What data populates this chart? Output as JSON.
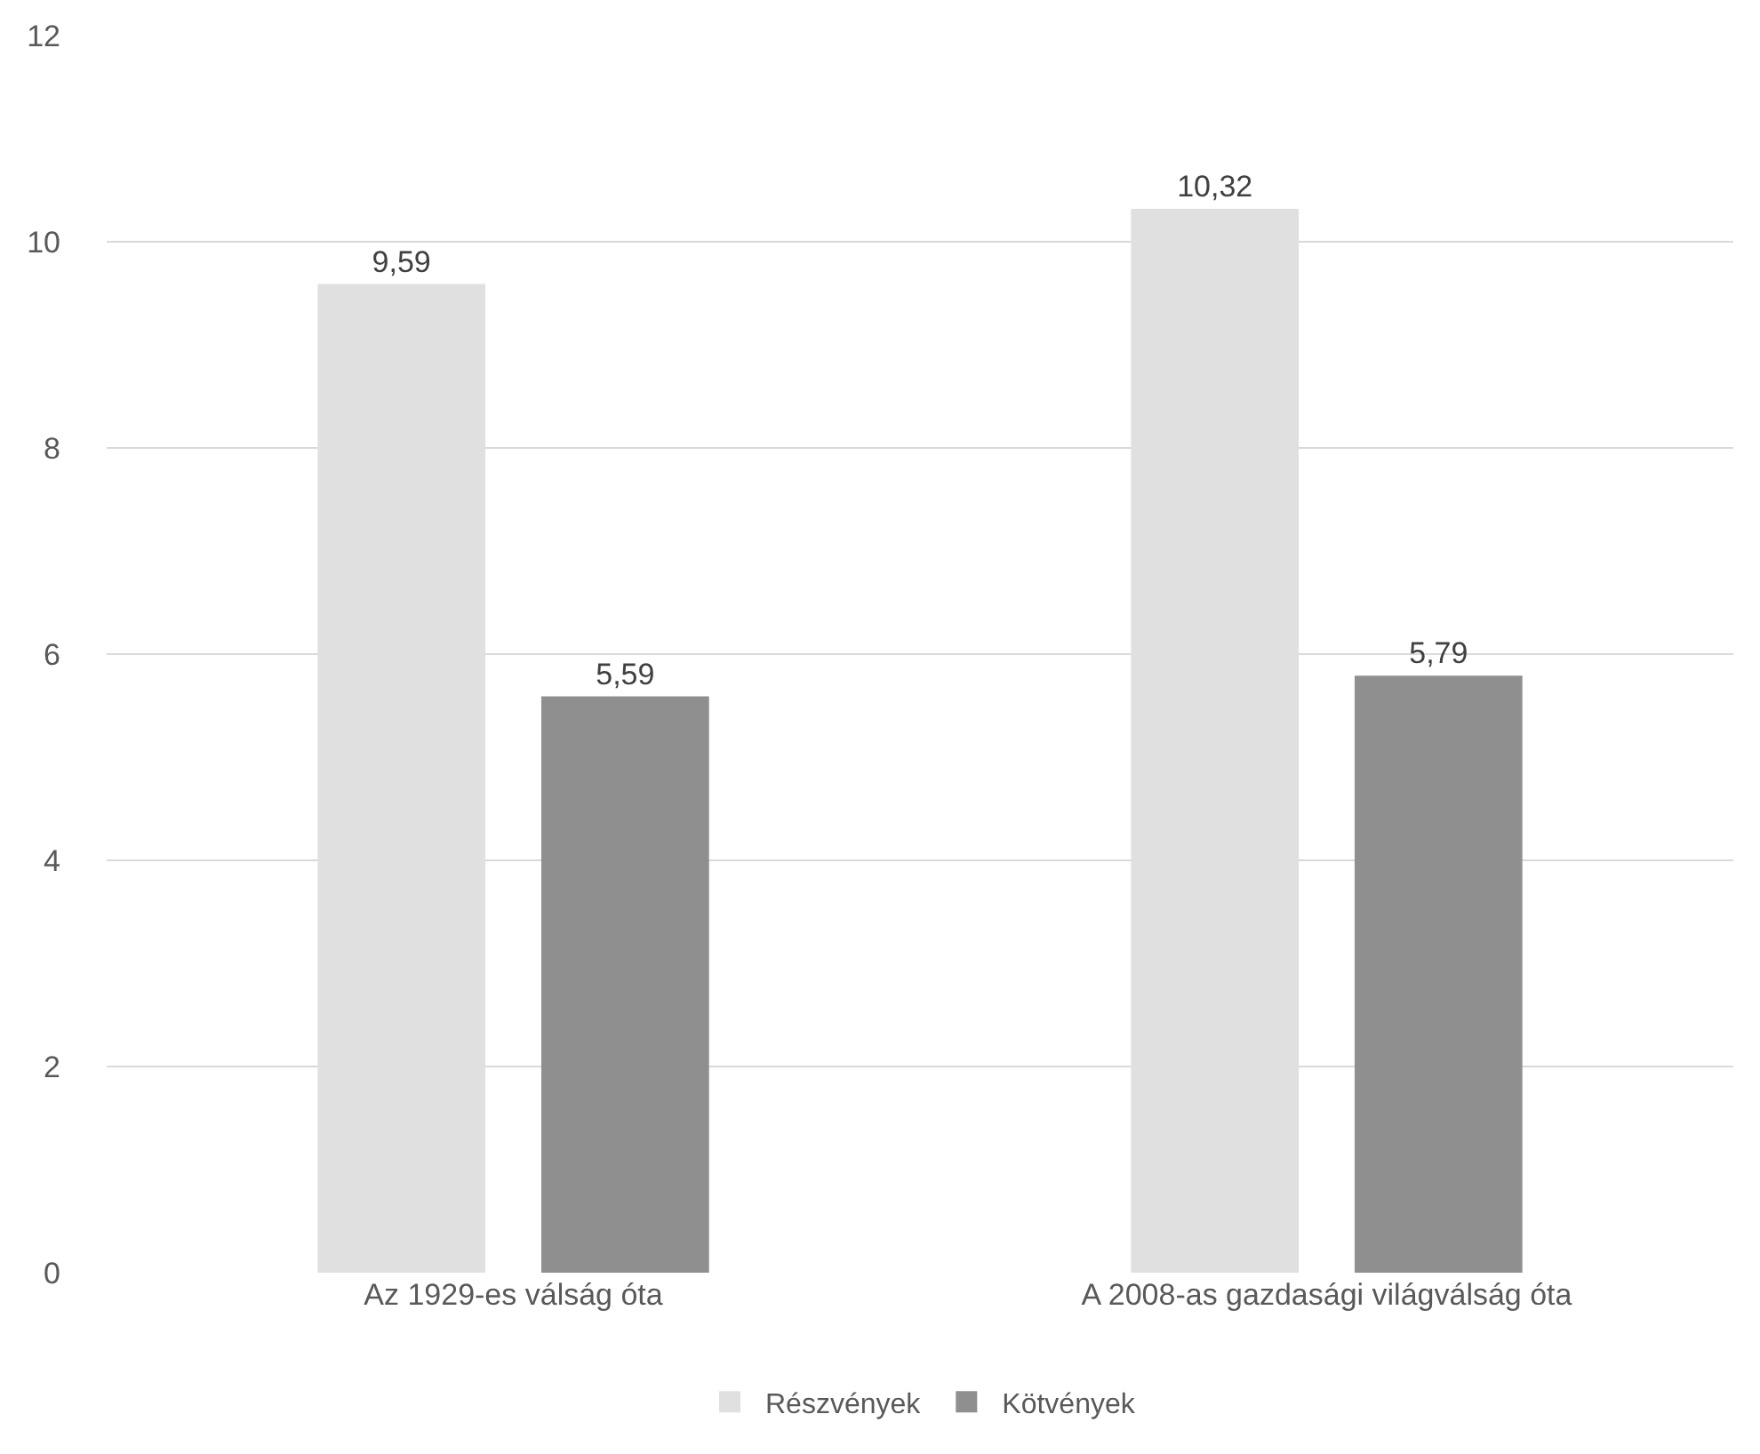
{
  "chart_data": {
    "type": "bar",
    "categories": [
      "Az 1929-es válság óta",
      "A 2008-as gazdasági világválság óta"
    ],
    "series": [
      {
        "name": "Részvények",
        "color": "#e0e0e0",
        "values": [
          9.59,
          10.32
        ],
        "value_labels": [
          "9,59",
          "10,32"
        ]
      },
      {
        "name": "Kötvények",
        "color": "#8f8f8f",
        "values": [
          5.59,
          5.79
        ],
        "value_labels": [
          "5,59",
          "5,79"
        ]
      }
    ],
    "ylim": [
      0,
      12
    ],
    "yticks": [
      0,
      2,
      4,
      6,
      8,
      10,
      12
    ],
    "grid": "y",
    "legend": "bottom"
  }
}
